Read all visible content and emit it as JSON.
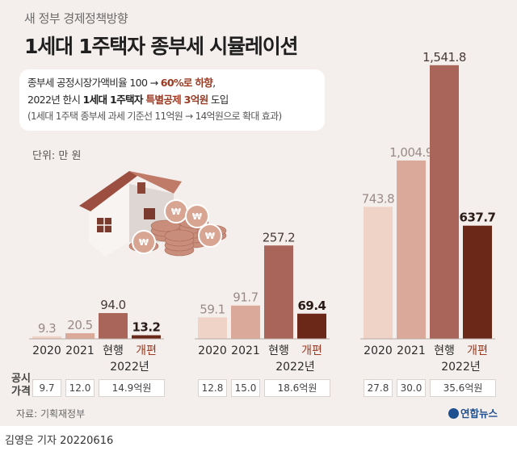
{
  "subtitle": "새 정부 경제정책방향",
  "title": "1세대 1주택자 종부세 시뮬레이션",
  "info": {
    "l1a": "종부세 공정시장가액비율 100 → ",
    "l1b": "60%로 하향",
    "l1c": ",",
    "l2a": "2022년 한시 ",
    "l2b": "1세대 1주택자 ",
    "l2c": "특별공제 3억원",
    "l2d": " 도입",
    "l3": "(1세대 1주택 종부세 과세 기준선 11억원 → 14억원으로 확대 효과)"
  },
  "unit": "단위: 만 원",
  "colors": {
    "2020": "#f0d3c7",
    "2021": "#dba999",
    "current": "#a9655a",
    "reform": "#6b2718",
    "reform_label": "#9a3a22"
  },
  "chart_data": {
    "type": "bar",
    "categories": [
      "2020",
      "2021",
      "현행",
      "개편"
    ],
    "category_group_label": "2022년",
    "unit": "만 원",
    "groups": [
      {
        "values": [
          9.3,
          20.5,
          94.0
        ],
        "reform": 13.2,
        "value_labels": [
          "9.3",
          "20.5",
          "94.0",
          "13.2"
        ],
        "price_labels": [
          "9.7",
          "12.0",
          "14.9억원"
        ]
      },
      {
        "values": [
          59.1,
          91.7,
          257.2
        ],
        "reform": 69.4,
        "value_labels": [
          "59.1",
          "91.7",
          "257.2",
          "69.4"
        ],
        "price_labels": [
          "12.8",
          "15.0",
          "18.6억원"
        ]
      },
      {
        "values": [
          743.8,
          1004.9,
          1541.8
        ],
        "reform": 637.7,
        "value_labels": [
          "743.8",
          "1,004.9",
          "1,541.8",
          "637.7"
        ],
        "price_labels": [
          "27.8",
          "30.0",
          "35.6억원"
        ]
      }
    ]
  },
  "price_label": "공시 가격",
  "source": "자료: 기획재정부",
  "logo": "연합뉴스",
  "credit": "김영은 기자  20220616"
}
